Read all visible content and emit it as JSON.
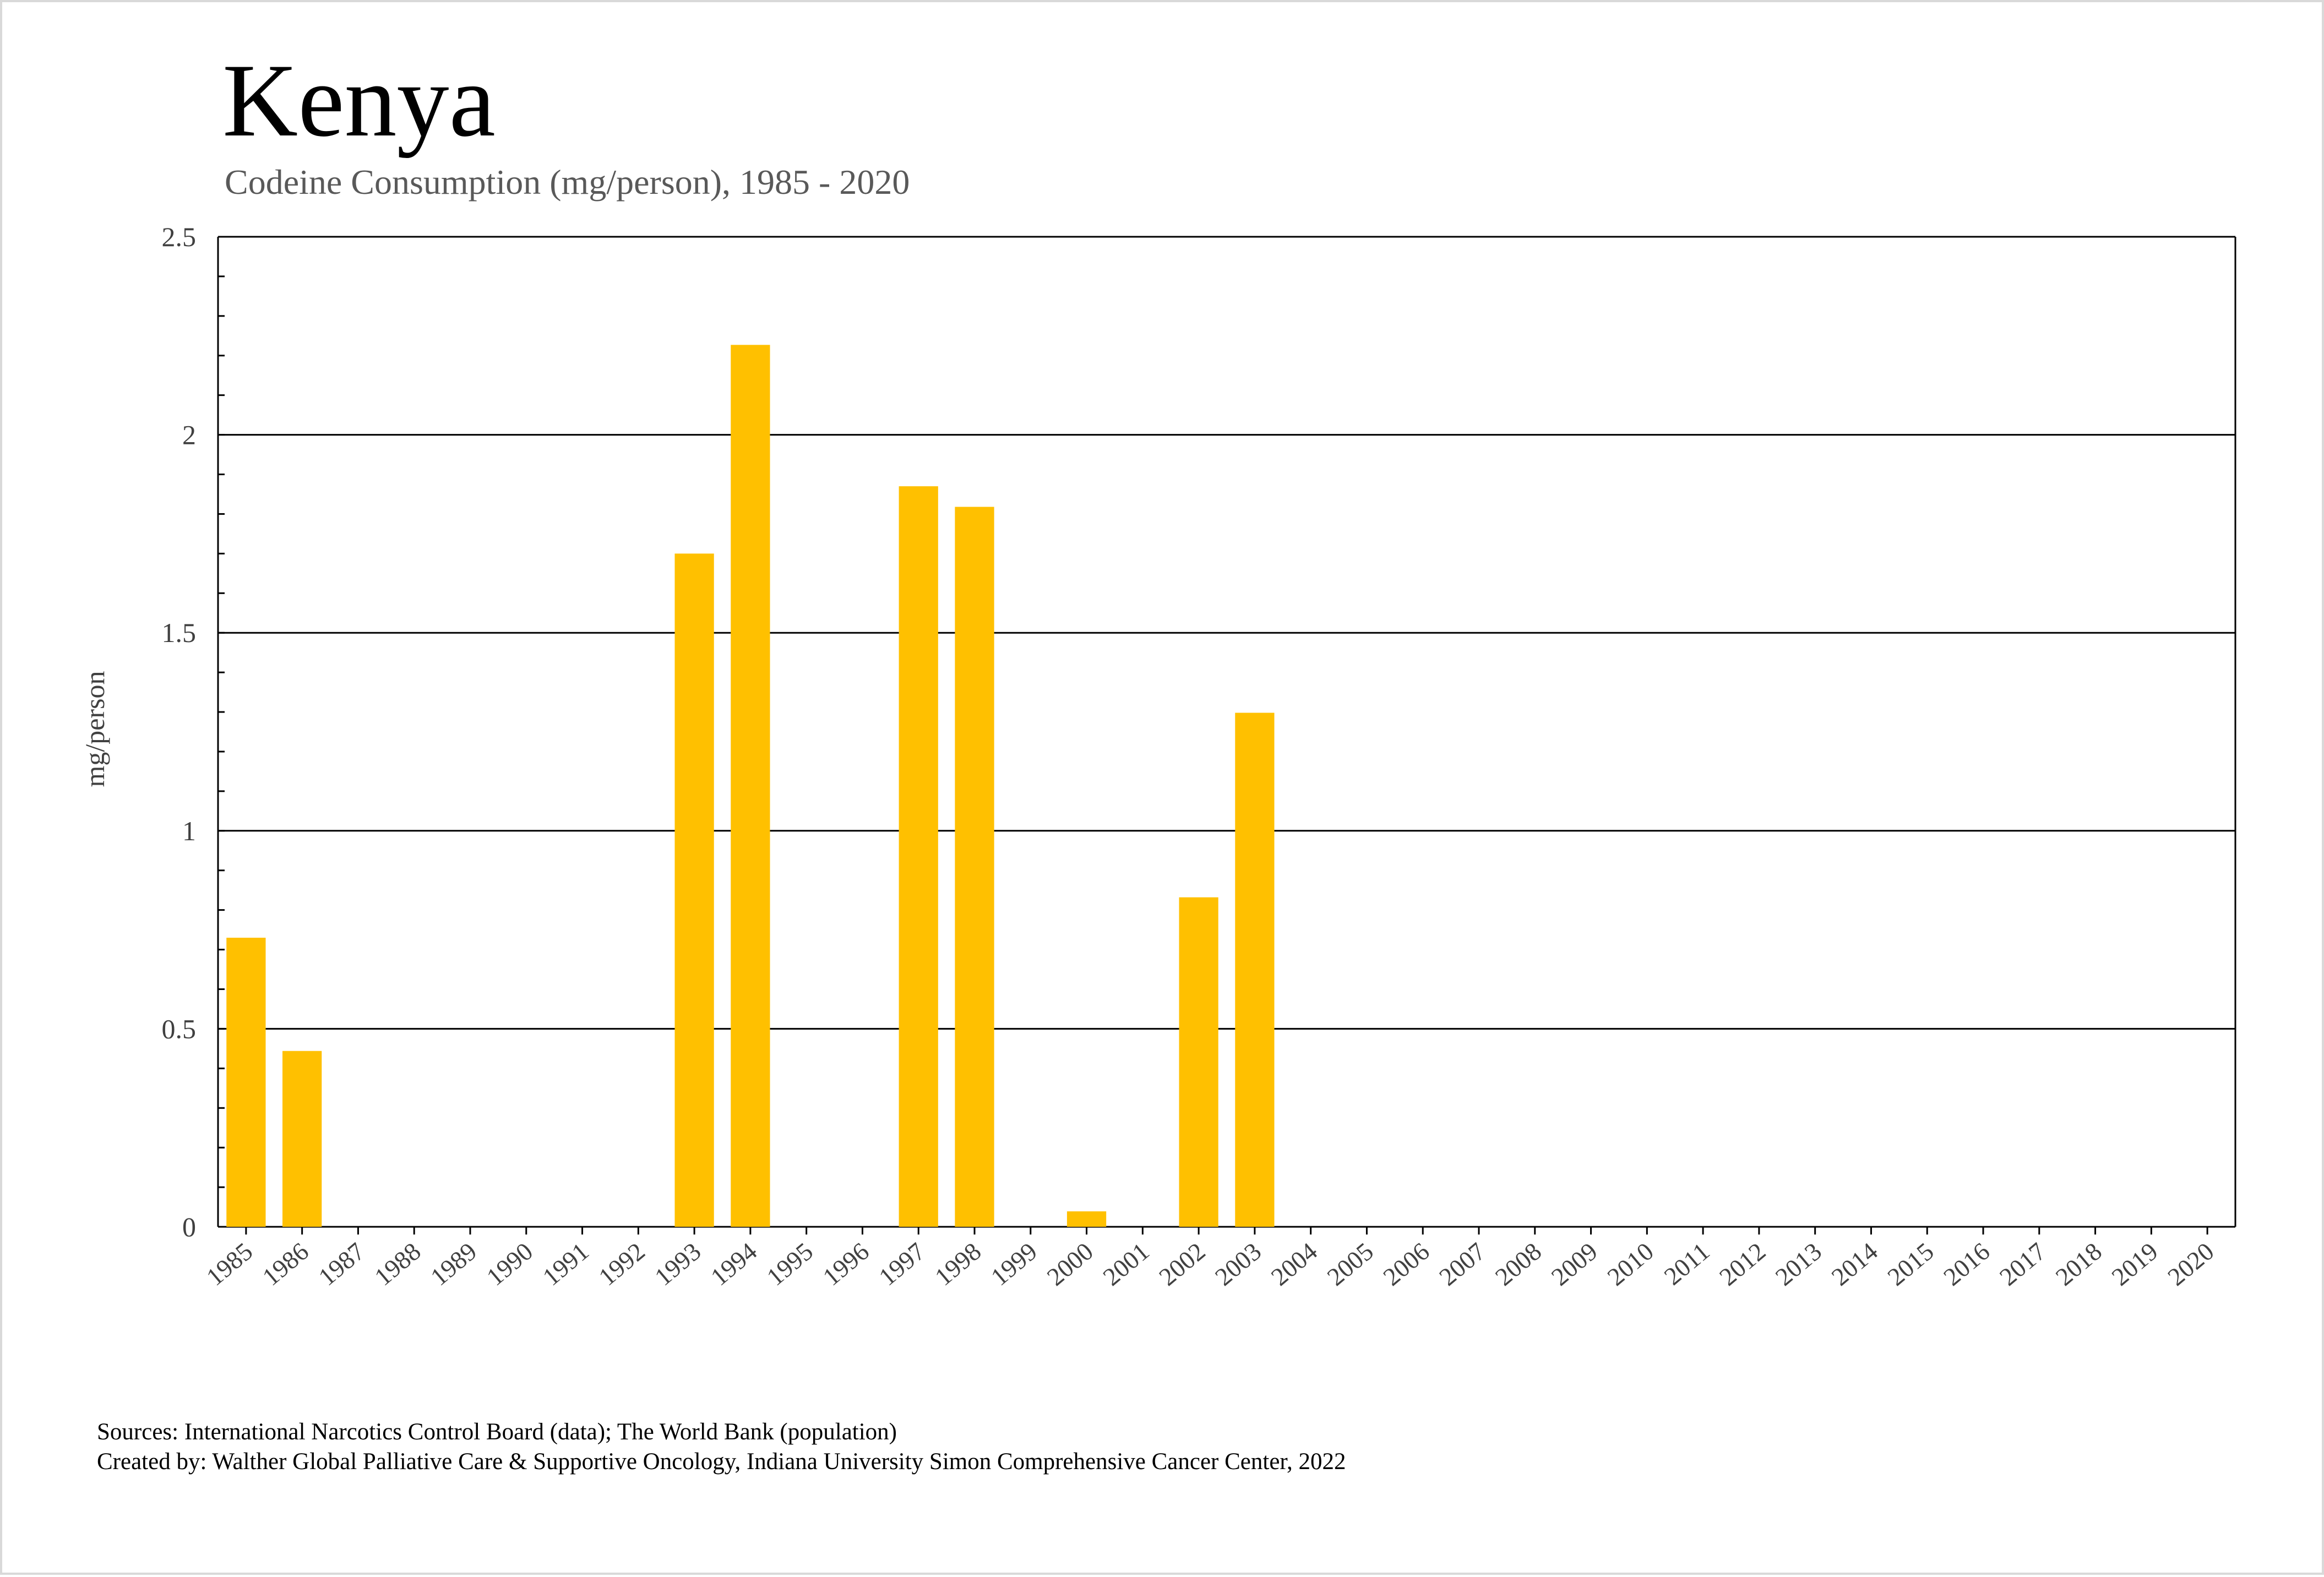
{
  "title": "Kenya",
  "subtitle": "Codeine Consumption (mg/person), 1985 - 2020",
  "footer": {
    "sources": "Sources: International Narcotics Control Board (data); The World Bank (population)",
    "created": "Created by: Walther Global Palliative Care & Supportive Oncology, Indiana University Simon Comprehensive Cancer Center, 2022"
  },
  "chart_data": {
    "type": "bar",
    "title": "Kenya",
    "subtitle": "Codeine Consumption (mg/person), 1985 - 2020",
    "xlabel": "",
    "ylabel": "mg/person",
    "ylim": [
      0,
      2.5
    ],
    "yticks": [
      "0",
      "0.5",
      "1",
      "1.5",
      "2",
      "2.5"
    ],
    "grid": true,
    "bar_color": "#FFC000",
    "categories": [
      "1985",
      "1986",
      "1987",
      "1988",
      "1989",
      "1990",
      "1991",
      "1992",
      "1993",
      "1994",
      "1995",
      "1996",
      "1997",
      "1998",
      "1999",
      "2000",
      "2001",
      "2002",
      "2003",
      "2004",
      "2005",
      "2006",
      "2007",
      "2008",
      "2009",
      "2010",
      "2011",
      "2012",
      "2013",
      "2014",
      "2015",
      "2016",
      "2017",
      "2018",
      "2019",
      "2020"
    ],
    "values": [
      0.73,
      0.444,
      0,
      0,
      0,
      0,
      0,
      0,
      1.7,
      2.227,
      0,
      0,
      1.87,
      1.818,
      0,
      0.039,
      0,
      0.832,
      1.298,
      0,
      0,
      0,
      0,
      0,
      0,
      0,
      0,
      0,
      0,
      0,
      0,
      0,
      0,
      0,
      0,
      0
    ]
  }
}
